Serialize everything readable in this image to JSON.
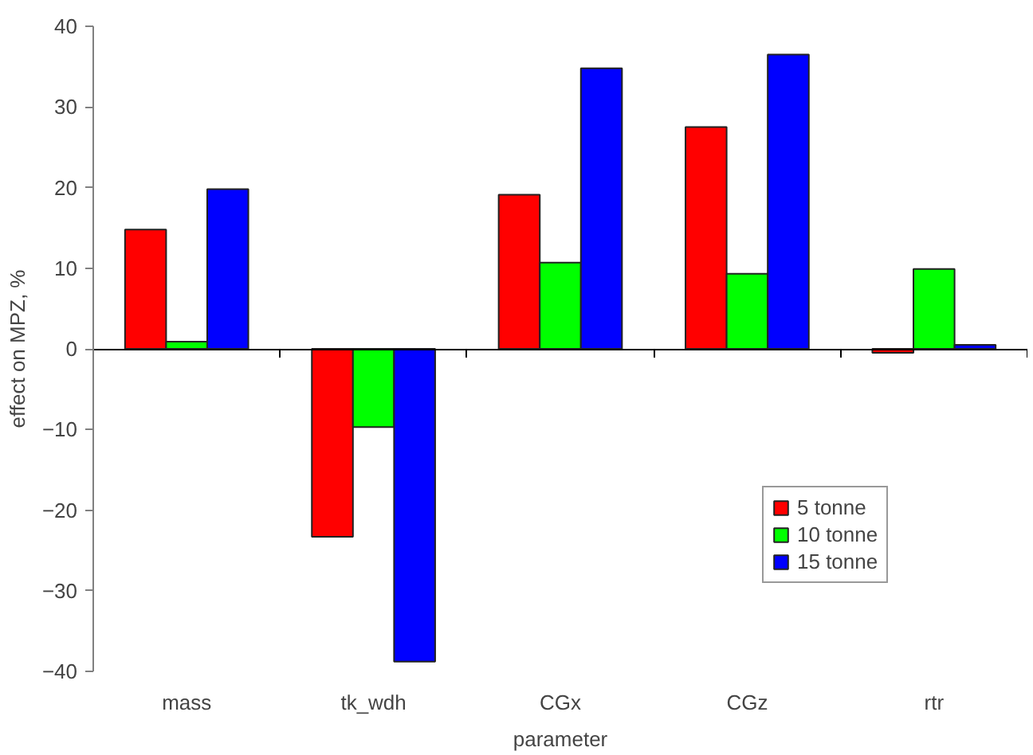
{
  "chart_data": {
    "type": "bar",
    "xlabel": "parameter",
    "ylabel": "effect on MPZ, %",
    "categories": [
      "mass",
      "tk_wdh",
      "CGx",
      "CGz",
      "rtr"
    ],
    "series": [
      {
        "name": "5 tonne",
        "color": "#ff0000",
        "values": [
          14.8,
          -23.3,
          19.1,
          27.5,
          -0.5
        ]
      },
      {
        "name": "10 tonne",
        "color": "#00ff00",
        "values": [
          0.9,
          -9.7,
          10.7,
          9.3,
          9.9
        ]
      },
      {
        "name": "15 tonne",
        "color": "#0000ff",
        "values": [
          19.8,
          -38.8,
          34.8,
          36.5,
          0.5
        ]
      }
    ],
    "ylim": [
      -40,
      40
    ],
    "yticks": [
      -40,
      -30,
      -20,
      -10,
      0,
      10,
      20,
      30,
      40
    ],
    "legend": "bottom right"
  }
}
